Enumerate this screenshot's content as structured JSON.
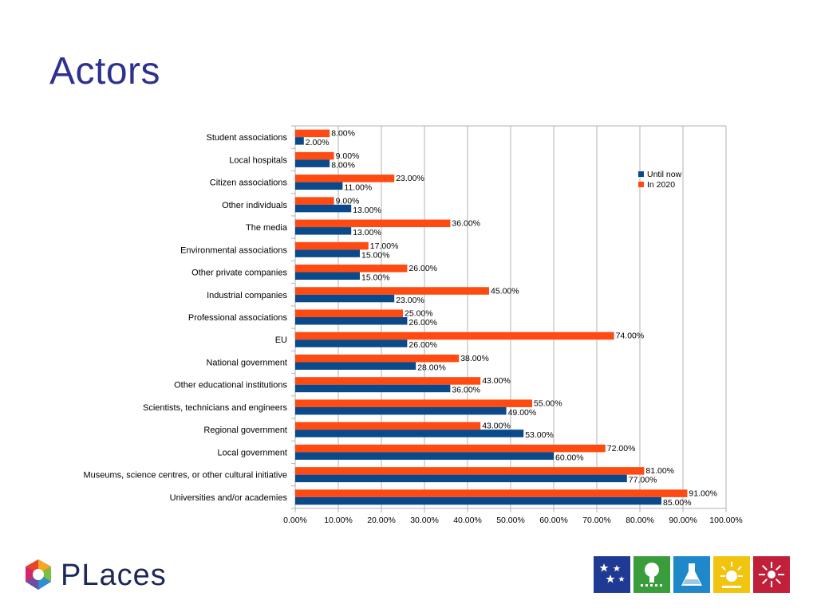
{
  "slide": {
    "title": "Actors"
  },
  "logo": {
    "text": "PLaces"
  },
  "icons": [
    {
      "name": "stars-icon",
      "color": "#1f3a93"
    },
    {
      "name": "tree-icon",
      "color": "#3a9d3c"
    },
    {
      "name": "flask-icon",
      "color": "#1e88c9"
    },
    {
      "name": "sun-icon",
      "color": "#f1c40f"
    },
    {
      "name": "spark-icon",
      "color": "#c0203a"
    }
  ],
  "chart_data": {
    "type": "bar",
    "orientation": "horizontal",
    "categories": [
      "Student associations",
      "Local hospitals",
      "Citizen associations",
      "Other individuals",
      "The media",
      "Environmental associations",
      "Other private companies",
      "Industrial companies",
      "Professional associations",
      "EU",
      "National government",
      "Other educational institutions",
      "Scientists, technicians and engineers",
      "Regional government",
      "Local government",
      "Museums, science centres, or other cultural initiative",
      "Universities and/or academies"
    ],
    "series": [
      {
        "name": "In 2020",
        "color": "#ff4a12",
        "values": [
          8,
          9,
          23,
          9,
          36,
          17,
          26,
          45,
          25,
          74,
          38,
          43,
          55,
          43,
          72,
          81,
          91
        ],
        "labels": [
          "8.00%",
          "9.00%",
          "23.00%",
          "9.00%",
          "36.00%",
          "17.00%",
          "26.00%",
          "45.00%",
          "25.00%",
          "74.00%",
          "38.00%",
          "43.00%",
          "55.00%",
          "43.00%",
          "72.00%",
          "81.00%",
          "91.00%"
        ]
      },
      {
        "name": "Until now",
        "color": "#0b4a8a",
        "values": [
          2,
          8,
          11,
          13,
          13,
          15,
          15,
          23,
          26,
          26,
          28,
          36,
          49,
          53,
          60,
          77,
          85
        ],
        "labels": [
          "2.00%",
          "8.00%",
          "11.00%",
          "13.00%",
          "13.00%",
          "15.00%",
          "15.00%",
          "23.00%",
          "26.00%",
          "26.00%",
          "28.00%",
          "36.00%",
          "49.00%",
          "53.00%",
          "60.00%",
          "77.00%",
          "85.00%"
        ]
      }
    ],
    "xlim": [
      0,
      100
    ],
    "xticks": [
      "0.00%",
      "10.00%",
      "20.00%",
      "30.00%",
      "40.00%",
      "50.00%",
      "60.00%",
      "70.00%",
      "80.00%",
      "90.00%",
      "100.00%"
    ],
    "legend": [
      "Until now",
      "In 2020"
    ],
    "legend_position": "top-right",
    "grid": "vertical"
  }
}
